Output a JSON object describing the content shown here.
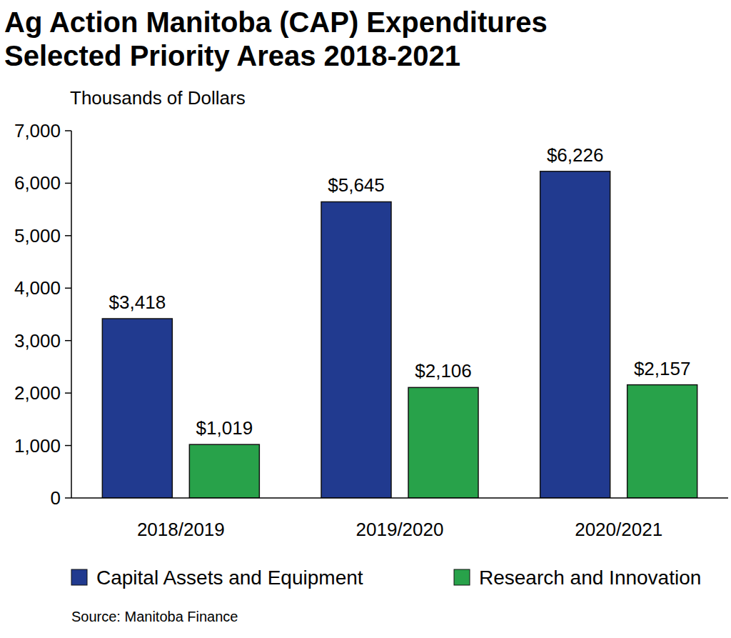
{
  "chart_data": {
    "type": "bar",
    "title": "Ag Action Manitoba (CAP) Expenditures",
    "subtitle": "Selected Priority Areas 2018-2021",
    "ylabel": "Thousands of Dollars",
    "source": "Source: Manitoba Finance",
    "categories": [
      "2018/2019",
      "2019/2020",
      "2020/2021"
    ],
    "series": [
      {
        "name": "Capital Assets and Equipment",
        "color": "#213a8f",
        "values": [
          3418,
          5645,
          6226
        ],
        "value_labels": [
          "$3,418",
          "$5,645",
          "$6,226"
        ]
      },
      {
        "name": "Research and Innovation",
        "color": "#28a24a",
        "values": [
          1019,
          2106,
          2157
        ],
        "value_labels": [
          "$1,019",
          "$2,106",
          "$2,157"
        ]
      }
    ],
    "ylim": [
      0,
      7000
    ],
    "yticks": [
      0,
      {
        "value": 1000,
        "label": "1,000"
      },
      {
        "value": 2000,
        "label": "2,000"
      },
      {
        "value": 3000,
        "label": "3,000"
      },
      {
        "value": 4000,
        "label": "4,000"
      },
      {
        "value": 5000,
        "label": "5,000"
      },
      {
        "value": 6000,
        "label": "6,000"
      },
      {
        "value": 7000,
        "label": "7,000"
      }
    ],
    "grid": false,
    "legend": "bottom",
    "data_labels": true
  }
}
